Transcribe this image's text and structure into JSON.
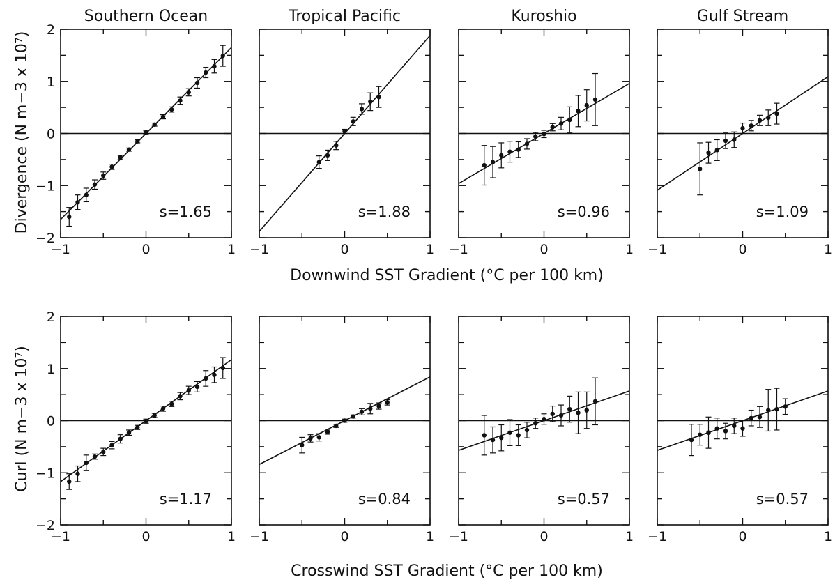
{
  "figure": {
    "row_labels": [
      "Divergence (N m−3 x 10⁷)",
      "Curl (N m−3 x 10⁷)"
    ],
    "x_labels": [
      "Downwind SST Gradient (°C per 100 km)",
      "Crosswind SST Gradient (°C per 100 km)"
    ]
  },
  "chart_data": [
    {
      "type": "scatter",
      "title": "Southern Ocean",
      "row": 0,
      "col": 0,
      "xlim": [
        -1,
        1
      ],
      "ylim": [
        -2,
        2
      ],
      "xticks": [
        -1,
        0,
        1
      ],
      "yticks": [
        -2,
        -1,
        0,
        1,
        2
      ],
      "slope": 1.65,
      "slope_label": "s=1.65",
      "x": [
        -0.9,
        -0.8,
        -0.7,
        -0.6,
        -0.5,
        -0.4,
        -0.3,
        -0.2,
        -0.1,
        0.0,
        0.1,
        0.2,
        0.3,
        0.4,
        0.5,
        0.6,
        0.7,
        0.8,
        0.9
      ],
      "y": [
        -1.6,
        -1.32,
        -1.18,
        -0.98,
        -0.81,
        -0.64,
        -0.46,
        -0.31,
        -0.15,
        0.02,
        0.17,
        0.32,
        0.46,
        0.63,
        0.79,
        0.97,
        1.17,
        1.29,
        1.49
      ],
      "err": [
        0.18,
        0.14,
        0.13,
        0.09,
        0.07,
        0.05,
        0.04,
        0.03,
        0.03,
        0.03,
        0.03,
        0.04,
        0.05,
        0.07,
        0.07,
        0.1,
        0.1,
        0.13,
        0.2
      ]
    },
    {
      "type": "scatter",
      "title": "Tropical Pacific",
      "row": 0,
      "col": 1,
      "xlim": [
        -1,
        1
      ],
      "ylim": [
        -2,
        2
      ],
      "xticks": [
        -1,
        0,
        1
      ],
      "yticks": [
        -2,
        -1,
        0,
        1,
        2
      ],
      "slope": 1.88,
      "slope_label": "s=1.88",
      "x": [
        -0.3,
        -0.2,
        -0.1,
        0.0,
        0.1,
        0.2,
        0.3,
        0.4
      ],
      "y": [
        -0.55,
        -0.42,
        -0.23,
        0.04,
        0.23,
        0.47,
        0.61,
        0.7
      ],
      "err": [
        0.12,
        0.1,
        0.08,
        0.04,
        0.08,
        0.1,
        0.17,
        0.2
      ]
    },
    {
      "type": "scatter",
      "title": "Kuroshio",
      "row": 0,
      "col": 2,
      "xlim": [
        -1,
        1
      ],
      "ylim": [
        -2,
        2
      ],
      "xticks": [
        -1,
        0,
        1
      ],
      "yticks": [
        -2,
        -1,
        0,
        1,
        2
      ],
      "slope": 0.96,
      "slope_label": "s=0.96",
      "x": [
        -0.7,
        -0.6,
        -0.5,
        -0.4,
        -0.3,
        -0.2,
        -0.1,
        0.0,
        0.1,
        0.2,
        0.3,
        0.4,
        0.5,
        0.6
      ],
      "y": [
        -0.61,
        -0.55,
        -0.42,
        -0.35,
        -0.31,
        -0.2,
        -0.06,
        -0.01,
        0.12,
        0.19,
        0.26,
        0.43,
        0.54,
        0.65
      ],
      "err": [
        0.38,
        0.3,
        0.24,
        0.2,
        0.15,
        0.1,
        0.08,
        0.07,
        0.07,
        0.12,
        0.25,
        0.3,
        0.3,
        0.5
      ]
    },
    {
      "type": "scatter",
      "title": "Gulf Stream",
      "row": 0,
      "col": 3,
      "xlim": [
        -1,
        1
      ],
      "ylim": [
        -2,
        2
      ],
      "xticks": [
        -1,
        0,
        1
      ],
      "yticks": [
        -2,
        -1,
        0,
        1,
        2
      ],
      "slope": 1.09,
      "slope_label": "s=1.09",
      "x": [
        -0.5,
        -0.4,
        -0.3,
        -0.2,
        -0.1,
        0.0,
        0.1,
        0.2,
        0.3,
        0.4
      ],
      "y": [
        -0.68,
        -0.37,
        -0.32,
        -0.14,
        -0.12,
        0.1,
        0.15,
        0.25,
        0.3,
        0.38
      ],
      "err": [
        0.5,
        0.2,
        0.2,
        0.15,
        0.15,
        0.1,
        0.1,
        0.1,
        0.15,
        0.2
      ]
    },
    {
      "type": "scatter",
      "title": "",
      "row": 1,
      "col": 0,
      "xlim": [
        -1,
        1
      ],
      "ylim": [
        -2,
        2
      ],
      "xticks": [
        -1,
        0,
        1
      ],
      "yticks": [
        -2,
        -1,
        0,
        1,
        2
      ],
      "slope": 1.17,
      "slope_label": "s=1.17",
      "x": [
        -0.9,
        -0.8,
        -0.7,
        -0.6,
        -0.5,
        -0.4,
        -0.3,
        -0.2,
        -0.1,
        0.0,
        0.1,
        0.2,
        0.3,
        0.4,
        0.5,
        0.6,
        0.7,
        0.8,
        0.9
      ],
      "y": [
        -1.17,
        -1.02,
        -0.81,
        -0.69,
        -0.6,
        -0.47,
        -0.35,
        -0.23,
        -0.13,
        -0.01,
        0.1,
        0.23,
        0.32,
        0.47,
        0.58,
        0.65,
        0.81,
        0.88,
        1.01
      ],
      "err": [
        0.15,
        0.15,
        0.15,
        0.05,
        0.07,
        0.07,
        0.08,
        0.05,
        0.04,
        0.04,
        0.04,
        0.05,
        0.05,
        0.07,
        0.08,
        0.1,
        0.15,
        0.15,
        0.2
      ]
    },
    {
      "type": "scatter",
      "title": "",
      "row": 1,
      "col": 1,
      "xlim": [
        -1,
        1
      ],
      "ylim": [
        -2,
        2
      ],
      "xticks": [
        -1,
        0,
        1
      ],
      "yticks": [
        -2,
        -1,
        0,
        1,
        2
      ],
      "slope": 0.84,
      "slope_label": "s=0.84",
      "x": [
        -0.5,
        -0.4,
        -0.3,
        -0.2,
        -0.1,
        0.0,
        0.1,
        0.2,
        0.3,
        0.4,
        0.5
      ],
      "y": [
        -0.47,
        -0.34,
        -0.32,
        -0.22,
        -0.1,
        0.0,
        0.08,
        0.17,
        0.23,
        0.28,
        0.35
      ],
      "err": [
        0.15,
        0.07,
        0.07,
        0.04,
        0.03,
        0.03,
        0.03,
        0.06,
        0.1,
        0.06,
        0.05
      ]
    },
    {
      "type": "scatter",
      "title": "",
      "row": 1,
      "col": 2,
      "xlim": [
        -1,
        1
      ],
      "ylim": [
        -2,
        2
      ],
      "xticks": [
        -1,
        0,
        1
      ],
      "yticks": [
        -2,
        -1,
        0,
        1,
        2
      ],
      "slope": 0.57,
      "slope_label": "s=0.57",
      "x": [
        -0.7,
        -0.6,
        -0.5,
        -0.4,
        -0.3,
        -0.2,
        -0.1,
        0.0,
        0.1,
        0.2,
        0.3,
        0.4,
        0.5,
        0.6
      ],
      "y": [
        -0.28,
        -0.37,
        -0.33,
        -0.23,
        -0.28,
        -0.18,
        -0.05,
        0.03,
        0.13,
        0.1,
        0.22,
        0.15,
        0.2,
        0.37
      ],
      "err": [
        0.38,
        0.25,
        0.25,
        0.25,
        0.2,
        0.15,
        0.1,
        0.1,
        0.15,
        0.2,
        0.25,
        0.4,
        0.35,
        0.45
      ]
    },
    {
      "type": "scatter",
      "title": "",
      "row": 1,
      "col": 3,
      "xlim": [
        -1,
        1
      ],
      "ylim": [
        -2,
        2
      ],
      "xticks": [
        -1,
        0,
        1
      ],
      "yticks": [
        -2,
        -1,
        0,
        1,
        2
      ],
      "slope": 0.57,
      "slope_label": "s=0.57",
      "x": [
        -0.6,
        -0.5,
        -0.4,
        -0.3,
        -0.2,
        -0.1,
        0.0,
        0.1,
        0.2,
        0.3,
        0.4,
        0.5
      ],
      "y": [
        -0.37,
        -0.27,
        -0.23,
        -0.15,
        -0.2,
        -0.1,
        -0.15,
        0.05,
        0.07,
        0.2,
        0.22,
        0.27
      ],
      "err": [
        0.3,
        0.2,
        0.3,
        0.2,
        0.15,
        0.15,
        0.15,
        0.15,
        0.2,
        0.4,
        0.4,
        0.15
      ]
    }
  ]
}
